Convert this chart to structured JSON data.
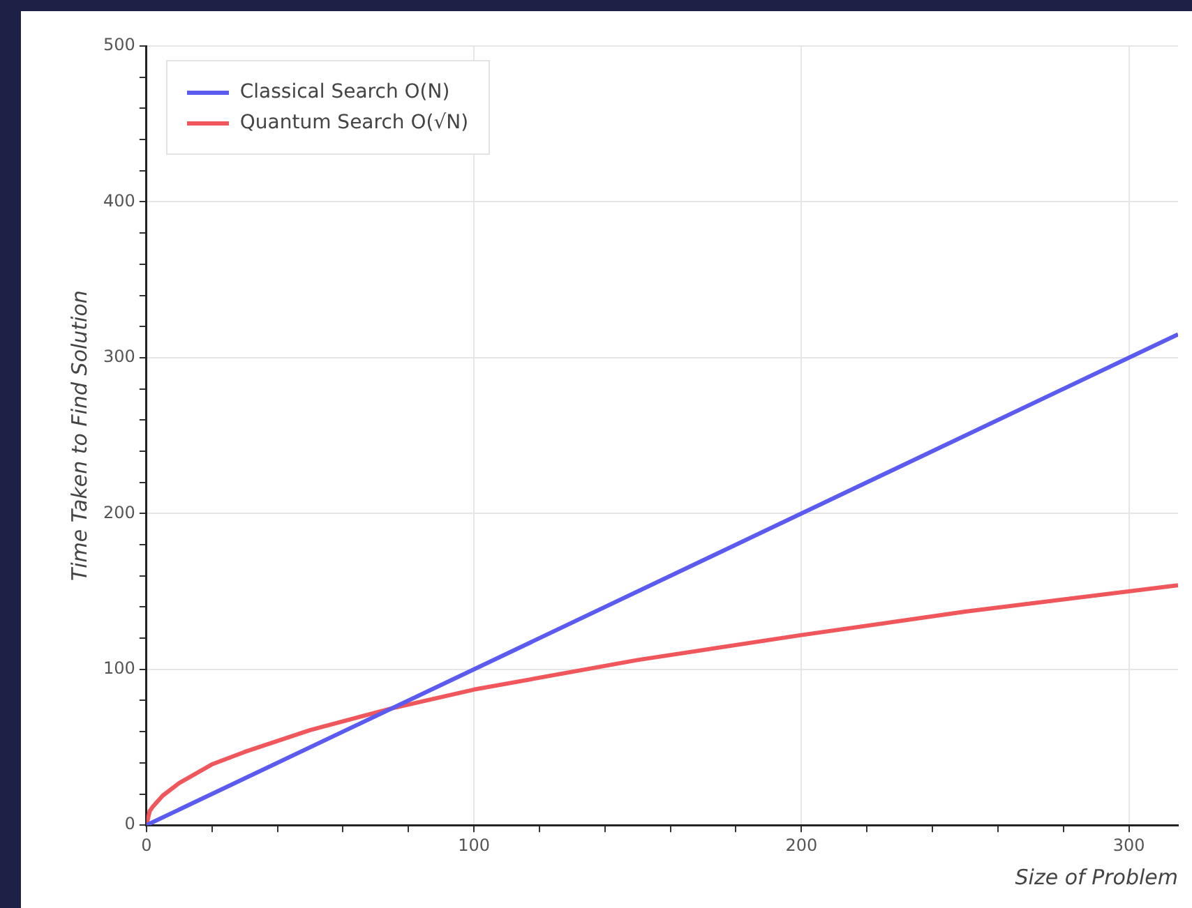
{
  "chart_data": {
    "type": "line",
    "xlabel": "Size of Problem",
    "ylabel": "Time Taken to Find Solution",
    "xlim": [
      0,
      315
    ],
    "ylim": [
      0,
      500
    ],
    "xticks": [
      0,
      {
        "value": 20,
        "label": null
      },
      {
        "value": 40,
        "label": null
      },
      {
        "value": 60,
        "label": null
      },
      {
        "value": 80,
        "label": null
      },
      100,
      {
        "value": 120,
        "label": null
      },
      {
        "value": 140,
        "label": null
      },
      {
        "value": 160,
        "label": null
      },
      {
        "value": 180,
        "label": null
      },
      200,
      {
        "value": 220,
        "label": null
      },
      {
        "value": 240,
        "label": null
      },
      {
        "value": 260,
        "label": null
      },
      {
        "value": 280,
        "label": null
      },
      300
    ],
    "yticks": [
      0,
      {
        "value": 20,
        "label": null
      },
      {
        "value": 40,
        "label": null
      },
      {
        "value": 60,
        "label": null
      },
      {
        "value": 80,
        "label": null
      },
      100,
      {
        "value": 120,
        "label": null
      },
      {
        "value": 140,
        "label": null
      },
      {
        "value": 160,
        "label": null
      },
      {
        "value": 180,
        "label": null
      },
      200,
      {
        "value": 220,
        "label": null
      },
      {
        "value": 240,
        "label": null
      },
      {
        "value": 260,
        "label": null
      },
      {
        "value": 280,
        "label": null
      },
      300,
      {
        "value": 320,
        "label": null
      },
      {
        "value": 340,
        "label": null
      },
      {
        "value": 360,
        "label": null
      },
      {
        "value": 380,
        "label": null
      },
      400,
      {
        "value": 420,
        "label": null
      },
      {
        "value": 440,
        "label": null
      },
      {
        "value": 460,
        "label": null
      },
      {
        "value": 480,
        "label": null
      },
      500
    ],
    "grid": true,
    "legend": "top left",
    "marker": "none",
    "line_style": "solid",
    "series": [
      {
        "name": "Classical Search O(N)",
        "color": "#5b5bf0",
        "x": [
          0,
          315
        ],
        "values": [
          0,
          315
        ]
      },
      {
        "name": "Quantum Search O(√N)",
        "color": "#f0575c",
        "x": [
          0,
          1,
          2,
          5,
          10,
          20,
          30,
          50,
          75,
          100,
          150,
          200,
          250,
          315
        ],
        "values": [
          0,
          9,
          12,
          19,
          27,
          39,
          47,
          61,
          75,
          87,
          106,
          122,
          137,
          154
        ]
      }
    ]
  }
}
